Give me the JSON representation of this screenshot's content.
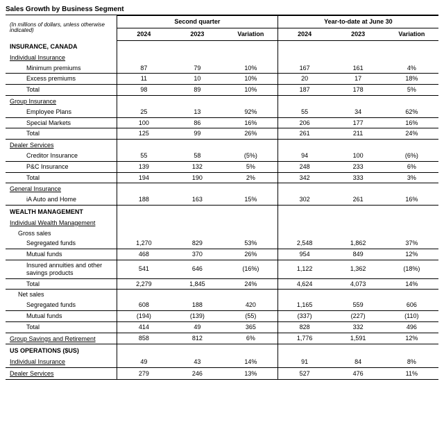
{
  "title": "Sales Growth by Business Segment",
  "note": "(In millions of dollars, unless otherwise indicated)",
  "group_headers": [
    "Second quarter",
    "Year-to-date at June 30"
  ],
  "col_headers": [
    "2024",
    "2023",
    "Variation",
    "2024",
    "2023",
    "Variation"
  ],
  "rows": [
    {
      "type": "section",
      "label": "INSURANCE, CANADA"
    },
    {
      "type": "subhdr",
      "label": "Individual Insurance"
    },
    {
      "type": "data",
      "indent": 2,
      "bb": true,
      "label": "Minimum premiums",
      "v": [
        "87",
        "79",
        "10%",
        "167",
        "161",
        "4%"
      ]
    },
    {
      "type": "data",
      "indent": 2,
      "bb": true,
      "label": "Excess premiums",
      "v": [
        "11",
        "10",
        "10%",
        "20",
        "17",
        "18%"
      ]
    },
    {
      "type": "data",
      "indent": 2,
      "bb": true,
      "label": "Total",
      "v": [
        "98",
        "89",
        "10%",
        "187",
        "178",
        "5%"
      ]
    },
    {
      "type": "subhdr",
      "label": "Group Insurance"
    },
    {
      "type": "data",
      "indent": 2,
      "bb": true,
      "label": "Employee Plans",
      "v": [
        "25",
        "13",
        "92%",
        "55",
        "34",
        "62%"
      ]
    },
    {
      "type": "data",
      "indent": 2,
      "bb": true,
      "label": "Special Markets",
      "v": [
        "100",
        "86",
        "16%",
        "206",
        "177",
        "16%"
      ]
    },
    {
      "type": "data",
      "indent": 2,
      "bb": true,
      "label": "Total",
      "v": [
        "125",
        "99",
        "26%",
        "261",
        "211",
        "24%"
      ]
    },
    {
      "type": "subhdr",
      "label": "Dealer Services"
    },
    {
      "type": "data",
      "indent": 2,
      "bb": true,
      "label": "Creditor Insurance",
      "v": [
        "55",
        "58",
        "(5%)",
        "94",
        "100",
        "(6%)"
      ]
    },
    {
      "type": "data",
      "indent": 2,
      "bb": true,
      "label": "P&C Insurance",
      "v": [
        "139",
        "132",
        "5%",
        "248",
        "233",
        "6%"
      ]
    },
    {
      "type": "data",
      "indent": 2,
      "bb": true,
      "label": "Total",
      "v": [
        "194",
        "190",
        "2%",
        "342",
        "333",
        "3%"
      ]
    },
    {
      "type": "subhdr",
      "label": "General Insurance"
    },
    {
      "type": "data",
      "indent": 2,
      "bb": true,
      "label": "iA Auto and Home",
      "v": [
        "188",
        "163",
        "15%",
        "302",
        "261",
        "16%"
      ]
    },
    {
      "type": "section",
      "label": "WEALTH MANAGEMENT"
    },
    {
      "type": "subhdr",
      "label": "Individual Wealth Management"
    },
    {
      "type": "data",
      "indent": 1,
      "bb": false,
      "label": "Gross sales",
      "v": [
        "",
        "",
        "",
        "",
        "",
        ""
      ]
    },
    {
      "type": "data",
      "indent": 2,
      "bb": true,
      "label": "Segregated funds",
      "v": [
        "1,270",
        "829",
        "53%",
        "2,548",
        "1,862",
        "37%"
      ]
    },
    {
      "type": "data",
      "indent": 2,
      "bb": true,
      "label": "Mutual funds",
      "v": [
        "468",
        "370",
        "26%",
        "954",
        "849",
        "12%"
      ]
    },
    {
      "type": "data",
      "indent": 2,
      "bb": true,
      "label": "Insured annuities and other savings products",
      "v": [
        "541",
        "646",
        "(16%)",
        "1,122",
        "1,362",
        "(18%)"
      ]
    },
    {
      "type": "data",
      "indent": 2,
      "bb": true,
      "label": "Total",
      "v": [
        "2,279",
        "1,845",
        "24%",
        "4,624",
        "4,073",
        "14%"
      ]
    },
    {
      "type": "data",
      "indent": 1,
      "bb": false,
      "label": "Net sales",
      "v": [
        "",
        "",
        "",
        "",
        "",
        ""
      ]
    },
    {
      "type": "data",
      "indent": 2,
      "bb": true,
      "label": "Segregated funds",
      "v": [
        "608",
        "188",
        "420",
        "1,165",
        "559",
        "606"
      ]
    },
    {
      "type": "data",
      "indent": 2,
      "bb": true,
      "label": "Mutual funds",
      "v": [
        "(194)",
        "(139)",
        "(55)",
        "(337)",
        "(227)",
        "(110)"
      ]
    },
    {
      "type": "data",
      "indent": 2,
      "bb": true,
      "label": "Total",
      "v": [
        "414",
        "49",
        "365",
        "828",
        "332",
        "496"
      ]
    },
    {
      "type": "data",
      "indent": 0,
      "bb": true,
      "subhdr_style": true,
      "label": "Group Savings and Retirement",
      "v": [
        "858",
        "812",
        "6%",
        "1,776",
        "1,591",
        "12%"
      ]
    },
    {
      "type": "section",
      "label": "US OPERATIONS ($US)"
    },
    {
      "type": "data",
      "indent": 0,
      "bb": true,
      "subhdr_style": true,
      "label": "Individual Insurance",
      "v": [
        "49",
        "43",
        "14%",
        "91",
        "84",
        "8%"
      ]
    },
    {
      "type": "data",
      "indent": 0,
      "bb": true,
      "subhdr_style": true,
      "label": "Dealer Services",
      "v": [
        "279",
        "246",
        "13%",
        "527",
        "476",
        "11%"
      ]
    }
  ]
}
